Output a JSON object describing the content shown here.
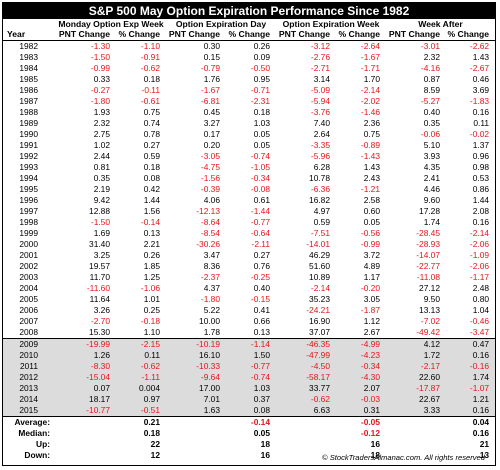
{
  "title": "S&P 500 May Option Expiration Performance Since 1982",
  "group_headers": [
    "Monday Option Exp Week",
    "Option Expiration Day",
    "Option Expiration Week",
    "Week After"
  ],
  "col_headers": [
    "Year",
    "PNT Change",
    "% Change",
    "PNT Change",
    "% Change",
    "PNT Change",
    "% Change",
    "PNT Change",
    "% Change"
  ],
  "rows": [
    [
      "1982",
      "-1.30",
      "-1.10",
      "0.30",
      "0.26",
      "-3.12",
      "-2.64",
      "-3.01",
      "-2.62"
    ],
    [
      "1983",
      "-1.50",
      "-0.91",
      "0.15",
      "0.09",
      "-2.76",
      "-1.67",
      "2.32",
      "1.43"
    ],
    [
      "1984",
      "-0.99",
      "-0.62",
      "-0.79",
      "-0.50",
      "-2.71",
      "-1.71",
      "-4.16",
      "-2.67"
    ],
    [
      "1985",
      "0.33",
      "0.18",
      "1.76",
      "0.95",
      "3.14",
      "1.70",
      "0.87",
      "0.46"
    ],
    [
      "1986",
      "-0.27",
      "-0.11",
      "-1.67",
      "-0.71",
      "-5.09",
      "-2.14",
      "8.59",
      "3.69"
    ],
    [
      "1987",
      "-1.80",
      "-0.61",
      "-6.81",
      "-2.31",
      "-5.94",
      "-2.02",
      "-5.27",
      "-1.83"
    ],
    [
      "1988",
      "1.93",
      "0.75",
      "0.45",
      "0.18",
      "-3.76",
      "-1.46",
      "0.40",
      "0.16"
    ],
    [
      "1989",
      "2.32",
      "0.74",
      "3.27",
      "1.03",
      "7.40",
      "2.36",
      "0.35",
      "0.11"
    ],
    [
      "1990",
      "2.75",
      "0.78",
      "0.17",
      "0.05",
      "2.64",
      "0.75",
      "-0.06",
      "-0.02"
    ],
    [
      "1991",
      "1.02",
      "0.27",
      "0.20",
      "0.05",
      "-3.35",
      "-0.89",
      "5.10",
      "1.37"
    ],
    [
      "1992",
      "2.44",
      "0.59",
      "-3.05",
      "-0.74",
      "-5.96",
      "-1.43",
      "3.93",
      "0.96"
    ],
    [
      "1993",
      "0.81",
      "0.18",
      "-4.75",
      "-1.05",
      "6.28",
      "1.43",
      "4.35",
      "0.98"
    ],
    [
      "1994",
      "0.35",
      "0.08",
      "-1.56",
      "-0.34",
      "10.78",
      "2.43",
      "2.41",
      "0.53"
    ],
    [
      "1995",
      "2.19",
      "0.42",
      "-0.39",
      "-0.08",
      "-6.36",
      "-1.21",
      "4.46",
      "0.86"
    ],
    [
      "1996",
      "9.42",
      "1.44",
      "4.06",
      "0.61",
      "16.82",
      "2.58",
      "9.60",
      "1.44"
    ],
    [
      "1997",
      "12.88",
      "1.56",
      "-12.13",
      "-1.44",
      "4.97",
      "0.60",
      "17.28",
      "2.08"
    ],
    [
      "1998",
      "-1.50",
      "-0.14",
      "-8.64",
      "-0.77",
      "0.59",
      "0.05",
      "1.74",
      "0.16"
    ],
    [
      "1999",
      "1.69",
      "0.13",
      "-8.54",
      "-0.64",
      "-7.51",
      "-0.56",
      "-28.45",
      "-2.14"
    ],
    [
      "2000",
      "31.40",
      "2.21",
      "-30.26",
      "-2.11",
      "-14.01",
      "-0.99",
      "-28.93",
      "-2.06"
    ],
    [
      "2001",
      "3.25",
      "0.26",
      "3.47",
      "0.27",
      "46.29",
      "3.72",
      "-14.07",
      "-1.09"
    ],
    [
      "2002",
      "19.57",
      "1.85",
      "8.36",
      "0.76",
      "51.60",
      "4.89",
      "-22.77",
      "-2.06"
    ],
    [
      "2003",
      "11.70",
      "1.25",
      "-2.37",
      "-0.25",
      "10.89",
      "1.17",
      "-11.08",
      "-1.17"
    ],
    [
      "2004",
      "-11.60",
      "-1.06",
      "4.37",
      "0.40",
      "-2.14",
      "-0.20",
      "27.12",
      "2.48"
    ],
    [
      "2005",
      "11.64",
      "1.01",
      "-1.80",
      "-0.15",
      "35.23",
      "3.05",
      "9.50",
      "0.80"
    ],
    [
      "2006",
      "3.26",
      "0.25",
      "5.22",
      "0.41",
      "-24.21",
      "-1.87",
      "13.13",
      "1.04"
    ],
    [
      "2007",
      "-2.70",
      "-0.18",
      "10.00",
      "0.66",
      "16.90",
      "1.12",
      "-7.02",
      "-0.46"
    ],
    [
      "2008",
      "15.30",
      "1.10",
      "1.78",
      "0.13",
      "37.07",
      "2.67",
      "-49.42",
      "-3.47"
    ],
    [
      "2009",
      "-19.99",
      "-2.15",
      "-10.19",
      "-1.14",
      "-46.35",
      "-4.99",
      "4.12",
      "0.47"
    ],
    [
      "2010",
      "1.26",
      "0.11",
      "16.10",
      "1.50",
      "-47.99",
      "-4.23",
      "1.72",
      "0.16"
    ],
    [
      "2011",
      "-8.30",
      "-0.62",
      "-10.33",
      "-0.77",
      "-4.50",
      "-0.34",
      "-2.17",
      "-0.16"
    ],
    [
      "2012",
      "-15.04",
      "-1.11",
      "-9.64",
      "-0.74",
      "-58.17",
      "-4.30",
      "22.60",
      "1.74"
    ],
    [
      "2013",
      "0.07",
      "0.004",
      "17.00",
      "1.03",
      "33.77",
      "2.07",
      "-17.87",
      "-1.07"
    ],
    [
      "2014",
      "18.17",
      "0.97",
      "7.01",
      "0.37",
      "-0.62",
      "-0.03",
      "22.67",
      "1.21"
    ],
    [
      "2015",
      "-10.77",
      "-0.51",
      "1.63",
      "0.08",
      "6.63",
      "0.31",
      "3.33",
      "0.16"
    ]
  ],
  "summary": [
    {
      "label": "Average:",
      "values": [
        "",
        "0.21",
        "",
        "-0.14",
        "",
        "-0.05",
        "",
        "0.04"
      ]
    },
    {
      "label": "Median:",
      "values": [
        "",
        "0.18",
        "",
        "0.05",
        "",
        "-0.12",
        "",
        "0.16"
      ]
    },
    {
      "label": "Up:",
      "values": [
        "",
        "22",
        "",
        "18",
        "",
        "16",
        "",
        "21"
      ]
    },
    {
      "label": "Down:",
      "values": [
        "",
        "12",
        "",
        "16",
        "",
        "18",
        "",
        "13"
      ]
    }
  ],
  "footer": "© StockTradersAlmanac.com. All rights reserved",
  "colors": {
    "negative": "#e8141b",
    "shade": "#dcdcdc",
    "title_bg": "#000000"
  }
}
